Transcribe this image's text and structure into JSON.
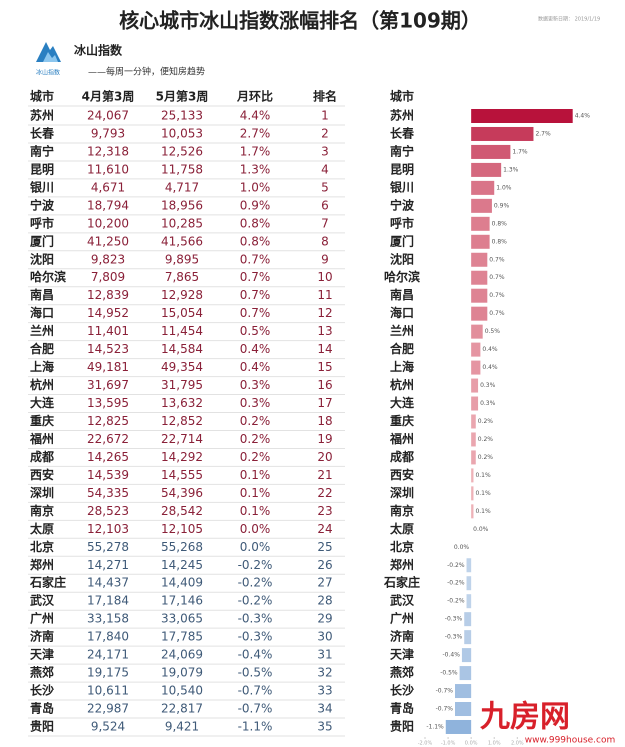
{
  "header": {
    "title": "核心城市冰山指数涨幅排名（第109期）",
    "date": "数据更新日期： 2019/1/19",
    "logo_small": "冰山指数",
    "logo_text": "冰山指数",
    "slogan": "——每周一分钟，便知房趋势"
  },
  "table": {
    "columns": [
      "城市",
      "4月第3周",
      "5月第3周",
      "月环比",
      "排名"
    ],
    "rows": [
      [
        "苏州",
        "24,067",
        "25,133",
        "4.4%",
        1
      ],
      [
        "长春",
        "9,793",
        "10,053",
        "2.7%",
        2
      ],
      [
        "南宁",
        "12,318",
        "12,526",
        "1.7%",
        3
      ],
      [
        "昆明",
        "11,610",
        "11,758",
        "1.3%",
        4
      ],
      [
        "银川",
        "4,671",
        "4,717",
        "1.0%",
        5
      ],
      [
        "宁波",
        "18,794",
        "18,956",
        "0.9%",
        6
      ],
      [
        "呼市",
        "10,200",
        "10,285",
        "0.8%",
        7
      ],
      [
        "厦门",
        "41,250",
        "41,566",
        "0.8%",
        8
      ],
      [
        "沈阳",
        "9,823",
        "9,895",
        "0.7%",
        9
      ],
      [
        "哈尔滨",
        "7,809",
        "7,865",
        "0.7%",
        10
      ],
      [
        "南昌",
        "12,839",
        "12,928",
        "0.7%",
        11
      ],
      [
        "海口",
        "14,952",
        "15,054",
        "0.7%",
        12
      ],
      [
        "兰州",
        "11,401",
        "11,454",
        "0.5%",
        13
      ],
      [
        "合肥",
        "14,523",
        "14,584",
        "0.4%",
        14
      ],
      [
        "上海",
        "49,181",
        "49,354",
        "0.4%",
        15
      ],
      [
        "杭州",
        "31,697",
        "31,795",
        "0.3%",
        16
      ],
      [
        "大连",
        "13,595",
        "13,632",
        "0.3%",
        17
      ],
      [
        "重庆",
        "12,825",
        "12,852",
        "0.2%",
        18
      ],
      [
        "福州",
        "22,672",
        "22,714",
        "0.2%",
        19
      ],
      [
        "成都",
        "14,265",
        "14,292",
        "0.2%",
        20
      ],
      [
        "西安",
        "14,539",
        "14,555",
        "0.1%",
        21
      ],
      [
        "深圳",
        "54,335",
        "54,396",
        "0.1%",
        22
      ],
      [
        "南京",
        "28,523",
        "28,542",
        "0.1%",
        23
      ],
      [
        "太原",
        "12,103",
        "12,105",
        "0.0%",
        24
      ],
      [
        "北京",
        "55,278",
        "55,268",
        "0.0%",
        25
      ],
      [
        "郑州",
        "14,271",
        "14,245",
        "-0.2%",
        26
      ],
      [
        "石家庄",
        "14,437",
        "14,409",
        "-0.2%",
        27
      ],
      [
        "武汉",
        "17,184",
        "17,146",
        "-0.2%",
        28
      ],
      [
        "广州",
        "33,158",
        "33,065",
        "-0.3%",
        29
      ],
      [
        "济南",
        "17,840",
        "17,785",
        "-0.3%",
        30
      ],
      [
        "天津",
        "24,171",
        "24,069",
        "-0.4%",
        31
      ],
      [
        "燕郊",
        "19,175",
        "19,079",
        "-0.5%",
        32
      ],
      [
        "长沙",
        "10,611",
        "10,540",
        "-0.7%",
        33
      ],
      [
        "青岛",
        "22,987",
        "22,817",
        "-0.7%",
        34
      ],
      [
        "贵阳",
        "9,524",
        "9,421",
        "-1.1%",
        35
      ]
    ]
  },
  "chart_data": {
    "type": "bar",
    "orientation": "horizontal",
    "header": "城市",
    "categories": [
      "苏州",
      "长春",
      "南宁",
      "昆明",
      "银川",
      "宁波",
      "呼市",
      "厦门",
      "沈阳",
      "哈尔滨",
      "南昌",
      "海口",
      "兰州",
      "合肥",
      "上海",
      "杭州",
      "大连",
      "重庆",
      "福州",
      "成都",
      "西安",
      "深圳",
      "南京",
      "太原",
      "北京",
      "郑州",
      "石家庄",
      "武汉",
      "广州",
      "济南",
      "天津",
      "燕郊",
      "长沙",
      "青岛",
      "贵阳"
    ],
    "values": [
      4.4,
      2.7,
      1.7,
      1.3,
      1.0,
      0.9,
      0.8,
      0.8,
      0.7,
      0.7,
      0.7,
      0.7,
      0.5,
      0.4,
      0.4,
      0.3,
      0.3,
      0.2,
      0.2,
      0.2,
      0.1,
      0.1,
      0.1,
      0.0,
      0.0,
      -0.2,
      -0.2,
      -0.2,
      -0.3,
      -0.3,
      -0.4,
      -0.5,
      -0.7,
      -0.7,
      -1.1
    ],
    "value_labels": [
      "4.4%",
      "2.7%",
      "1.7%",
      "1.3%",
      "1.0%",
      "0.9%",
      "0.8%",
      "0.8%",
      "0.7%",
      "0.7%",
      "0.7%",
      "0.7%",
      "0.5%",
      "0.4%",
      "0.4%",
      "0.3%",
      "0.3%",
      "0.2%",
      "0.2%",
      "0.2%",
      "0.1%",
      "0.1%",
      "0.1%",
      "0.0%",
      "0.0%",
      "-0.2%",
      "-0.2%",
      "-0.2%",
      "-0.3%",
      "-0.3%",
      "-0.4%",
      "-0.5%",
      "-0.7%",
      "-0.7%",
      "-1.1%"
    ],
    "xlim": [
      -2,
      4.5
    ],
    "xticks": [
      {
        "value": -2,
        "label": "-2.0%"
      },
      {
        "value": -1,
        "label": "-1.0%"
      },
      {
        "value": 0,
        "label": "0.0%"
      },
      {
        "value": 1,
        "label": "1.0%"
      },
      {
        "value": 2,
        "label": "2.0%"
      }
    ],
    "positive_color": "#b8123b",
    "negative_color": "#8fb3dc"
  },
  "watermark": {
    "brand": "九房网",
    "url": "www.999house.com"
  }
}
